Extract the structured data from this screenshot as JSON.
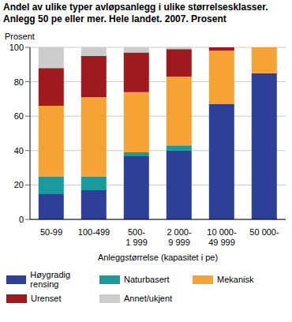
{
  "chart_data": {
    "type": "bar",
    "stacked": true,
    "grid": true,
    "legend": "bottom",
    "title": "Andel av ulike typer avløpsanlegg i ulike størrelsesklasser.",
    "subtitle": "Anlegg 50 pe eller mer. Hele landet. 2007. Prosent",
    "y_label": "Prosent",
    "x_label": "Anleggstørrelse (kapasitet i pe)",
    "categories": [
      "50-99",
      "100-499",
      "500-\n1 999",
      "2 000-\n9 999",
      "10 000-\n49 999",
      "50 000-"
    ],
    "ylim": [
      0,
      100
    ],
    "yticks": [
      0,
      20,
      40,
      60,
      80,
      100
    ],
    "series": [
      {
        "name": "Høygradig rensing",
        "color": "#2e3f98",
        "values": [
          15,
          17,
          37,
          40,
          67,
          85
        ]
      },
      {
        "name": "Naturbasert",
        "color": "#1a9a9a",
        "values": [
          10,
          8,
          2,
          3,
          0,
          0
        ]
      },
      {
        "name": "Mekanisk",
        "color": "#f7a234",
        "values": [
          41,
          46,
          35,
          40,
          31,
          15
        ]
      },
      {
        "name": "Urenset",
        "color": "#9e1a1f",
        "values": [
          22,
          24,
          23,
          16,
          2,
          0
        ]
      },
      {
        "name": "Annet/ukjent",
        "color": "#cccccc",
        "values": [
          12,
          5,
          3,
          1,
          0,
          0
        ]
      }
    ]
  }
}
